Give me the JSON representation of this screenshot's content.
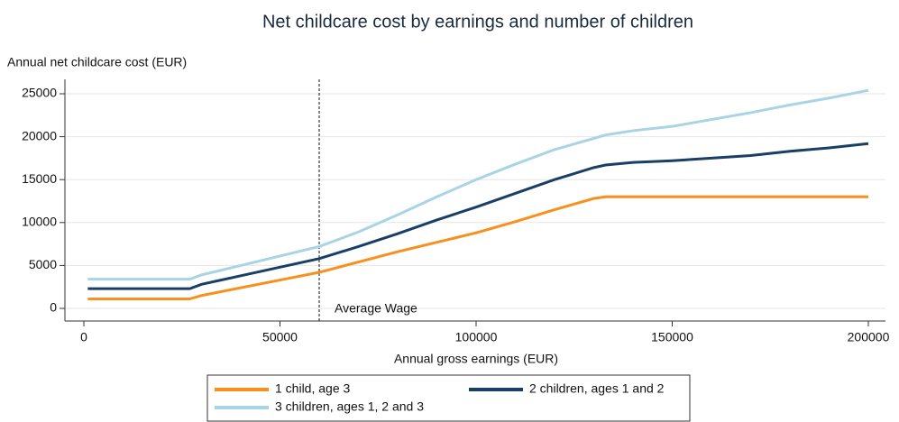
{
  "chart_data": {
    "type": "line",
    "title": "Net childcare cost by earnings and number of children",
    "y_label": "Annual net childcare cost (EUR)",
    "x_label": "Annual gross earnings (EUR)",
    "x": [
      1000,
      27000,
      30000,
      40000,
      50000,
      60000,
      70000,
      80000,
      90000,
      100000,
      110000,
      120000,
      130000,
      133000,
      140000,
      150000,
      160000,
      170000,
      180000,
      190000,
      200000
    ],
    "series": [
      {
        "name": "1 child, age 3",
        "color": "#f7901e",
        "values": [
          1100,
          1100,
          1500,
          2400,
          3300,
          4200,
          5400,
          6600,
          7700,
          8800,
          10100,
          11500,
          12800,
          13000,
          13000,
          13000,
          13000,
          13000,
          13000,
          13000,
          13000
        ]
      },
      {
        "name": "2 children, ages 1 and 2",
        "color": "#1a3f66",
        "values": [
          2300,
          2300,
          2800,
          3800,
          4800,
          5800,
          7200,
          8700,
          10300,
          11800,
          13400,
          15000,
          16400,
          16700,
          17000,
          17200,
          17500,
          17800,
          18300,
          18700,
          19200
        ]
      },
      {
        "name": "3 children, ages 1, 2 and 3",
        "color": "#a8d4e6",
        "values": [
          3400,
          3400,
          3900,
          5000,
          6100,
          7200,
          8900,
          10900,
          13000,
          15000,
          16800,
          18500,
          19800,
          20200,
          20700,
          21200,
          22000,
          22800,
          23700,
          24500,
          25400
        ]
      }
    ],
    "annotations": [
      {
        "text": "Average Wage",
        "x": 60000
      }
    ],
    "xlim": [
      0,
      200000
    ],
    "xticks": [
      0,
      50000,
      100000,
      150000,
      200000
    ],
    "ylim": [
      0,
      25000
    ],
    "yticks": [
      0,
      5000,
      10000,
      15000,
      20000,
      25000
    ],
    "grid": true,
    "legend": "bottom"
  }
}
